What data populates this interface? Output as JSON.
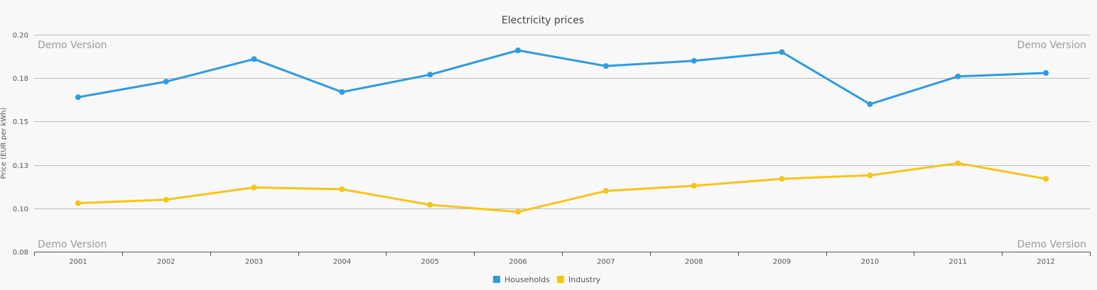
{
  "chart_data": {
    "type": "line",
    "title": "Electricity prices",
    "xlabel": "",
    "ylabel": "Price (EUR per kWh)",
    "ylim": [
      0.075,
      0.2
    ],
    "yticks": [
      0.2,
      0.175,
      0.15,
      0.125,
      0.1,
      0.075
    ],
    "ytick_labels": [
      "0.20",
      "0.18",
      "0.15",
      "0.13",
      "0.10",
      "0.08"
    ],
    "grid": true,
    "legend_position": "bottom-center",
    "categories": [
      "2001",
      "2002",
      "2003",
      "2004",
      "2005",
      "2006",
      "2007",
      "2008",
      "2009",
      "2010",
      "2011",
      "2012"
    ],
    "series": [
      {
        "name": "Households",
        "color": "#2d9be3",
        "values": [
          0.164,
          0.173,
          0.186,
          0.167,
          0.177,
          0.191,
          0.182,
          0.185,
          0.19,
          0.16,
          0.176,
          0.178
        ]
      },
      {
        "name": "Industry",
        "color": "#f9c414",
        "values": [
          0.103,
          0.105,
          0.112,
          0.111,
          0.102,
          0.098,
          0.11,
          0.113,
          0.117,
          0.119,
          0.126,
          0.117
        ]
      }
    ]
  },
  "watermarks": [
    "Demo Version",
    "Demo Version",
    "Demo Version",
    "Demo Version"
  ]
}
